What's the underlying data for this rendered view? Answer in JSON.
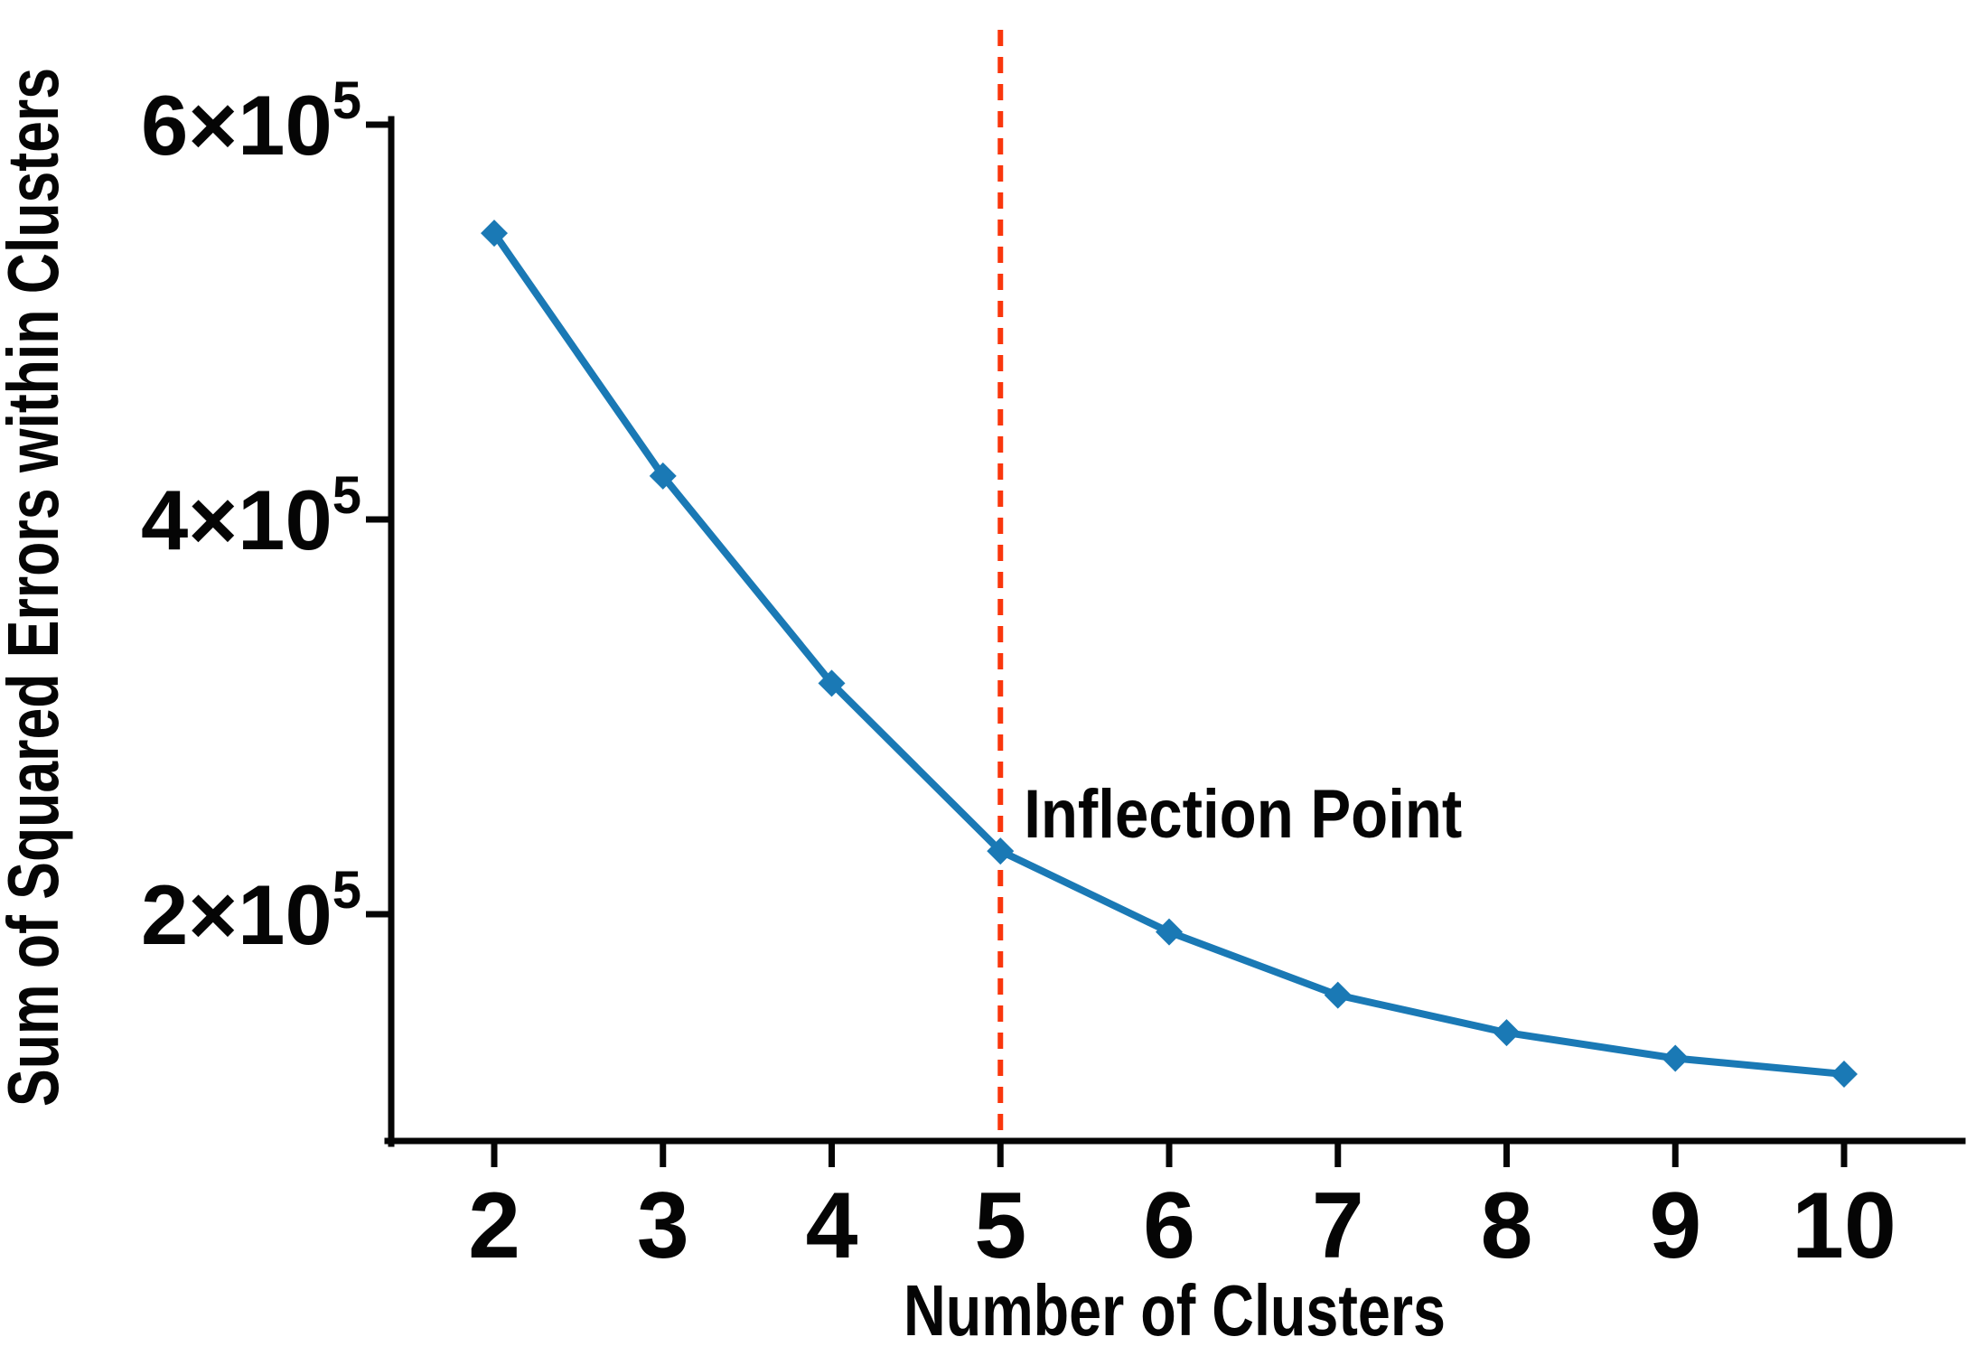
{
  "chart_data": {
    "type": "line",
    "title": "",
    "xlabel": "Number of Clusters",
    "ylabel": "Sum of Squared Errors within Clusters",
    "x": [
      2,
      3,
      4,
      5,
      6,
      7,
      8,
      9,
      10
    ],
    "values": [
      545000,
      422000,
      317000,
      232000,
      191000,
      159000,
      140000,
      127000,
      119000
    ],
    "series_name": "Sum of Squared Errors within Clusters",
    "marker": "diamond",
    "xticks": [
      "2",
      "3",
      "4",
      "5",
      "6",
      "7",
      "8",
      "9",
      "10"
    ],
    "yticks": [
      {
        "value": 200000,
        "base": "2×10",
        "exp": "5",
        "label": "2×10⁵"
      },
      {
        "value": 400000,
        "base": "4×10",
        "exp": "5",
        "label": "4×10⁵"
      },
      {
        "value": 600000,
        "base": "6×10",
        "exp": "5",
        "label": "6×10⁵"
      }
    ],
    "xlim": [
      1.37,
      10.69
    ],
    "ylim": [
      86000,
      601500
    ],
    "grid": false,
    "legend": "none",
    "annotation": {
      "text": "Inflection Point",
      "at_x": 5
    },
    "inflection_x": 5,
    "series_color": "#1a79b5",
    "vline_color": "#fa360c",
    "axis_color": "#050505"
  }
}
